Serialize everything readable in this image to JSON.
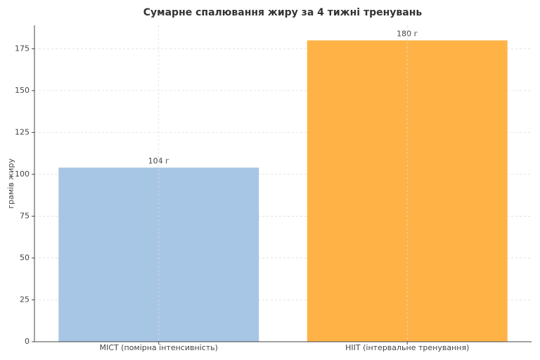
{
  "chart_data": {
    "type": "bar",
    "title": "Сумарне спалювання жиру за 4 тижні тренувань",
    "ylabel": "грамів жиру",
    "categories": [
      "MICT (помірна інтенсивність)",
      "HIIT (інтервальне тренування)"
    ],
    "values": [
      104,
      180
    ],
    "value_labels": [
      "104 г",
      "180 г"
    ],
    "colors": [
      "#a7c5e5",
      "#ffb347"
    ],
    "ylim": [
      0,
      189
    ],
    "yticks": [
      0,
      25,
      50,
      75,
      100,
      125,
      150,
      175
    ],
    "grid": true
  }
}
